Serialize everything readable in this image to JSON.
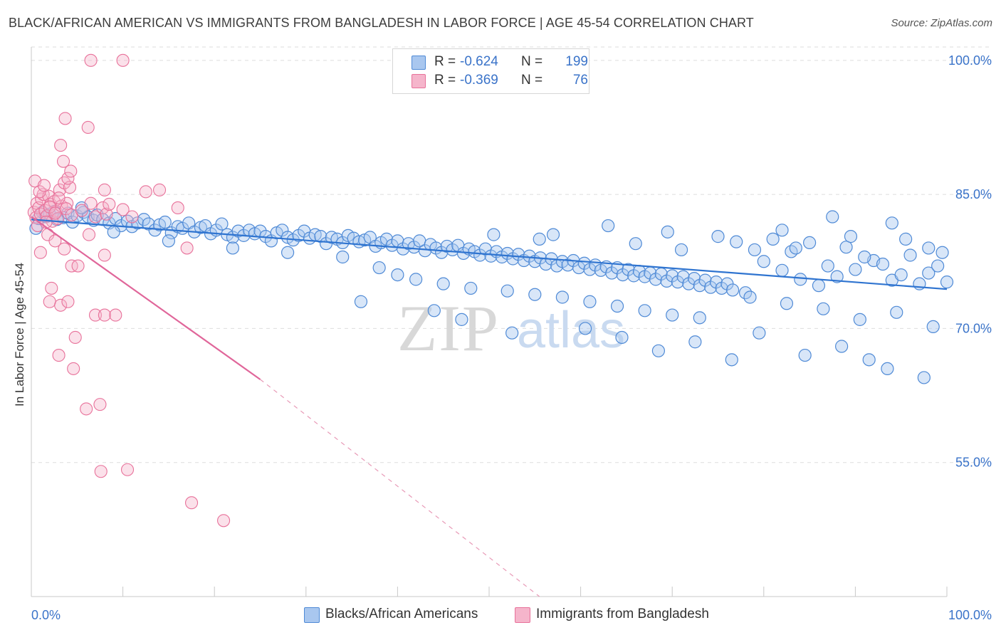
{
  "header": {
    "title": "BLACK/AFRICAN AMERICAN VS IMMIGRANTS FROM BANGLADESH IN LABOR FORCE | AGE 45-54 CORRELATION CHART",
    "source": "Source: ZipAtlas.com"
  },
  "watermark": {
    "zip": "ZIP",
    "atlas": "atlas"
  },
  "legend": {
    "r_label": "R =",
    "n_label": "N =",
    "series": [
      {
        "r": "-0.624",
        "n": "199"
      },
      {
        "r": "-0.369",
        "n": "76"
      }
    ]
  },
  "bottom_legend": [
    "Blacks/African Americans",
    "Immigrants from Bangladesh"
  ],
  "colors": {
    "blue": "#4f8ad6",
    "blue_fill": "#a9c7ef",
    "pink": "#e8719a",
    "pink_fill": "#f5b5cb",
    "tick": "#3a73c9",
    "grid": "#dddddd"
  },
  "chart_data": {
    "type": "scatter",
    "title": "BLACK/AFRICAN AMERICAN VS IMMIGRANTS FROM BANGLADESH IN LABOR FORCE | AGE 45-54 CORRELATION CHART",
    "xlabel": "",
    "ylabel": "In Labor Force | Age 45-54",
    "x_tick_labels": [
      "0.0%",
      "100.0%"
    ],
    "y_tick_labels": [
      "100.0%",
      "85.0%",
      "70.0%",
      "55.0%"
    ],
    "y_ticks": [
      100,
      85,
      70,
      55
    ],
    "xlim": [
      0,
      100
    ],
    "ylim": [
      40,
      101.5
    ],
    "grid": true,
    "legend_position": "top-center",
    "series": [
      {
        "name": "Blacks/African Americans",
        "color": "#4f8ad6",
        "trend": {
          "x": [
            0,
            100
          ],
          "y": [
            82.2,
            74.4
          ]
        },
        "points": [
          [
            0.5,
            81.2
          ],
          [
            0.8,
            82.3
          ],
          [
            1.2,
            83.0
          ],
          [
            1.6,
            82.5
          ],
          [
            2.0,
            82.8
          ],
          [
            2.5,
            83.1
          ],
          [
            2.8,
            82.2
          ],
          [
            3.5,
            82.4
          ],
          [
            4.0,
            82.9
          ],
          [
            4.5,
            81.9
          ],
          [
            5.0,
            82.6
          ],
          [
            5.7,
            83.0
          ],
          [
            6.2,
            82.5
          ],
          [
            6.8,
            82.1
          ],
          [
            7.2,
            82.7
          ],
          [
            7.8,
            82.2
          ],
          [
            8.5,
            81.8
          ],
          [
            9.2,
            82.3
          ],
          [
            9.8,
            81.5
          ],
          [
            10.5,
            82.0
          ],
          [
            11.0,
            81.4
          ],
          [
            11.6,
            81.8
          ],
          [
            12.3,
            82.2
          ],
          [
            12.8,
            81.7
          ],
          [
            13.5,
            81.0
          ],
          [
            14.0,
            81.6
          ],
          [
            14.6,
            81.9
          ],
          [
            15.3,
            80.7
          ],
          [
            16.0,
            81.4
          ],
          [
            16.5,
            81.2
          ],
          [
            17.2,
            81.8
          ],
          [
            17.8,
            80.8
          ],
          [
            18.5,
            81.3
          ],
          [
            19.0,
            81.5
          ],
          [
            19.6,
            80.6
          ],
          [
            20.2,
            81.0
          ],
          [
            20.8,
            81.7
          ],
          [
            21.4,
            80.5
          ],
          [
            22.0,
            80.2
          ],
          [
            22.6,
            80.9
          ],
          [
            23.2,
            80.4
          ],
          [
            23.8,
            81.0
          ],
          [
            24.4,
            80.6
          ],
          [
            25.0,
            80.9
          ],
          [
            25.6,
            80.3
          ],
          [
            26.2,
            79.8
          ],
          [
            26.8,
            80.7
          ],
          [
            27.4,
            81.0
          ],
          [
            28.0,
            80.2
          ],
          [
            28.6,
            79.9
          ],
          [
            29.2,
            80.4
          ],
          [
            29.8,
            80.9
          ],
          [
            30.4,
            80.1
          ],
          [
            31.0,
            80.5
          ],
          [
            31.6,
            80.3
          ],
          [
            32.2,
            79.5
          ],
          [
            32.8,
            80.2
          ],
          [
            33.4,
            80.0
          ],
          [
            34.0,
            79.6
          ],
          [
            34.6,
            80.4
          ],
          [
            35.2,
            80.1
          ],
          [
            35.8,
            79.7
          ],
          [
            36.4,
            79.9
          ],
          [
            37.0,
            80.2
          ],
          [
            37.6,
            79.2
          ],
          [
            38.2,
            79.6
          ],
          [
            38.8,
            80.0
          ],
          [
            39.4,
            79.3
          ],
          [
            40.0,
            79.8
          ],
          [
            40.6,
            78.9
          ],
          [
            41.2,
            79.5
          ],
          [
            41.8,
            79.1
          ],
          [
            42.4,
            79.8
          ],
          [
            43.0,
            78.7
          ],
          [
            43.6,
            79.4
          ],
          [
            44.2,
            79.0
          ],
          [
            44.8,
            78.5
          ],
          [
            45.4,
            79.2
          ],
          [
            46.0,
            78.8
          ],
          [
            46.6,
            79.3
          ],
          [
            47.2,
            78.4
          ],
          [
            47.8,
            78.9
          ],
          [
            48.4,
            78.6
          ],
          [
            49.0,
            78.2
          ],
          [
            49.6,
            78.9
          ],
          [
            50.2,
            78.1
          ],
          [
            50.8,
            78.6
          ],
          [
            51.4,
            78.0
          ],
          [
            52.0,
            78.4
          ],
          [
            52.6,
            77.8
          ],
          [
            53.2,
            78.3
          ],
          [
            53.8,
            77.6
          ],
          [
            54.4,
            78.1
          ],
          [
            55.0,
            77.5
          ],
          [
            55.6,
            77.9
          ],
          [
            56.2,
            77.2
          ],
          [
            56.8,
            77.8
          ],
          [
            57.4,
            77.0
          ],
          [
            58.0,
            77.5
          ],
          [
            58.6,
            77.1
          ],
          [
            59.2,
            77.6
          ],
          [
            59.8,
            76.8
          ],
          [
            60.4,
            77.3
          ],
          [
            61.0,
            76.6
          ],
          [
            61.6,
            77.1
          ],
          [
            62.2,
            76.5
          ],
          [
            62.8,
            76.9
          ],
          [
            63.4,
            76.2
          ],
          [
            64.0,
            76.8
          ],
          [
            64.6,
            76.0
          ],
          [
            65.2,
            76.6
          ],
          [
            65.8,
            75.9
          ],
          [
            66.4,
            76.4
          ],
          [
            67.0,
            75.8
          ],
          [
            67.6,
            76.2
          ],
          [
            68.2,
            75.5
          ],
          [
            68.8,
            76.1
          ],
          [
            69.4,
            75.3
          ],
          [
            70.0,
            75.9
          ],
          [
            70.6,
            75.2
          ],
          [
            71.2,
            75.8
          ],
          [
            71.8,
            75.0
          ],
          [
            72.4,
            75.6
          ],
          [
            73.0,
            74.8
          ],
          [
            73.6,
            75.4
          ],
          [
            74.2,
            74.6
          ],
          [
            74.8,
            75.2
          ],
          [
            75.4,
            74.5
          ],
          [
            76.0,
            75.0
          ],
          [
            76.6,
            74.3
          ],
          [
            5.5,
            83.5
          ],
          [
            9.0,
            80.8
          ],
          [
            15.0,
            79.8
          ],
          [
            22.0,
            79.0
          ],
          [
            28.0,
            78.5
          ],
          [
            34.0,
            78.0
          ],
          [
            38.0,
            76.8
          ],
          [
            40.0,
            76.0
          ],
          [
            42.0,
            75.5
          ],
          [
            45.0,
            75.0
          ],
          [
            48.0,
            74.5
          ],
          [
            52.0,
            74.2
          ],
          [
            55.0,
            73.8
          ],
          [
            58.0,
            73.5
          ],
          [
            61.0,
            73.0
          ],
          [
            64.0,
            72.5
          ],
          [
            67.0,
            72.0
          ],
          [
            70.0,
            71.5
          ],
          [
            73.0,
            71.2
          ],
          [
            78.0,
            74.0
          ],
          [
            80.0,
            77.5
          ],
          [
            82.0,
            76.5
          ],
          [
            84.0,
            75.5
          ],
          [
            86.0,
            74.8
          ],
          [
            88.0,
            75.8
          ],
          [
            90.0,
            76.6
          ],
          [
            92.0,
            77.6
          ],
          [
            94.0,
            75.4
          ],
          [
            96.0,
            78.2
          ],
          [
            98.0,
            76.2
          ],
          [
            79.0,
            78.8
          ],
          [
            81.0,
            80.0
          ],
          [
            83.0,
            78.6
          ],
          [
            85.0,
            79.6
          ],
          [
            87.0,
            77.0
          ],
          [
            89.0,
            79.1
          ],
          [
            91.0,
            78.0
          ],
          [
            93.0,
            77.2
          ],
          [
            95.0,
            76.0
          ],
          [
            97.0,
            75.0
          ],
          [
            99.0,
            77.0
          ],
          [
            100.0,
            75.2
          ],
          [
            78.5,
            73.5
          ],
          [
            82.5,
            72.8
          ],
          [
            86.5,
            72.2
          ],
          [
            90.5,
            71.0
          ],
          [
            94.5,
            71.8
          ],
          [
            98.5,
            70.2
          ],
          [
            88.5,
            68.0
          ],
          [
            93.5,
            65.5
          ],
          [
            97.5,
            64.5
          ],
          [
            79.5,
            69.5
          ],
          [
            84.5,
            67.0
          ],
          [
            91.5,
            66.5
          ],
          [
            60.5,
            70.0
          ],
          [
            52.5,
            69.5
          ],
          [
            36.0,
            73.0
          ],
          [
            44.0,
            72.0
          ],
          [
            47.0,
            71.0
          ],
          [
            64.5,
            69.0
          ],
          [
            68.5,
            67.5
          ],
          [
            72.5,
            68.5
          ],
          [
            76.5,
            66.5
          ],
          [
            63.0,
            81.5
          ],
          [
            57.0,
            80.5
          ],
          [
            69.5,
            80.8
          ],
          [
            75.0,
            80.3
          ],
          [
            82.0,
            81.0
          ],
          [
            87.5,
            82.5
          ],
          [
            94.0,
            81.8
          ],
          [
            98.0,
            79.0
          ],
          [
            66.0,
            79.5
          ],
          [
            55.5,
            80.0
          ],
          [
            50.5,
            80.5
          ],
          [
            71.0,
            78.8
          ],
          [
            77.0,
            79.7
          ],
          [
            83.5,
            79.0
          ],
          [
            89.5,
            80.3
          ],
          [
            95.5,
            80.0
          ],
          [
            99.5,
            78.5
          ]
        ]
      },
      {
        "name": "Immigrants from Bangladesh",
        "color": "#e8719a",
        "trend": {
          "x": [
            0,
            25
          ],
          "y": [
            82.5,
            64.3
          ]
        },
        "trend_dashed": {
          "x": [
            25,
            55.5
          ],
          "y": [
            64.3,
            40
          ]
        },
        "points": [
          [
            0.3,
            83.0
          ],
          [
            0.5,
            82.4
          ],
          [
            0.6,
            84.0
          ],
          [
            0.8,
            83.5
          ],
          [
            1.0,
            82.8
          ],
          [
            1.1,
            84.5
          ],
          [
            1.3,
            85.0
          ],
          [
            1.5,
            83.2
          ],
          [
            1.7,
            82.6
          ],
          [
            1.9,
            84.8
          ],
          [
            2.1,
            83.9
          ],
          [
            2.3,
            82.0
          ],
          [
            2.5,
            84.2
          ],
          [
            2.7,
            83.1
          ],
          [
            2.9,
            82.3
          ],
          [
            3.1,
            85.5
          ],
          [
            3.3,
            83.7
          ],
          [
            3.6,
            86.3
          ],
          [
            3.9,
            84.0
          ],
          [
            4.2,
            85.8
          ],
          [
            0.4,
            86.5
          ],
          [
            0.9,
            85.3
          ],
          [
            1.4,
            86.0
          ],
          [
            2.0,
            83.6
          ],
          [
            2.6,
            82.9
          ],
          [
            3.0,
            84.6
          ],
          [
            3.8,
            83.4
          ],
          [
            4.4,
            82.7
          ],
          [
            0.7,
            81.5
          ],
          [
            1.6,
            81.9
          ],
          [
            5.5,
            83.2
          ],
          [
            6.5,
            84.0
          ],
          [
            7.0,
            82.5
          ],
          [
            7.8,
            83.5
          ],
          [
            8.2,
            82.8
          ],
          [
            8.5,
            83.9
          ],
          [
            10.0,
            83.3
          ],
          [
            12.5,
            85.3
          ],
          [
            14.0,
            85.5
          ],
          [
            16.0,
            83.5
          ],
          [
            3.5,
            88.7
          ],
          [
            4.0,
            86.8
          ],
          [
            4.3,
            87.6
          ],
          [
            3.2,
            90.5
          ],
          [
            3.7,
            93.5
          ],
          [
            6.2,
            92.5
          ],
          [
            6.5,
            100.0
          ],
          [
            10.0,
            100.0
          ],
          [
            11.0,
            82.5
          ],
          [
            8.0,
            85.5
          ],
          [
            1.0,
            78.5
          ],
          [
            1.8,
            80.5
          ],
          [
            2.6,
            79.8
          ],
          [
            3.6,
            78.9
          ],
          [
            4.4,
            77.0
          ],
          [
            5.1,
            77.0
          ],
          [
            6.3,
            80.5
          ],
          [
            8.0,
            78.2
          ],
          [
            17.0,
            79.0
          ],
          [
            2.2,
            74.5
          ],
          [
            2.0,
            73.0
          ],
          [
            3.2,
            72.6
          ],
          [
            4.0,
            73.0
          ],
          [
            7.0,
            71.5
          ],
          [
            8.0,
            71.5
          ],
          [
            9.2,
            71.5
          ],
          [
            4.8,
            69.0
          ],
          [
            3.0,
            67.0
          ],
          [
            4.6,
            65.5
          ],
          [
            6.0,
            61.0
          ],
          [
            7.5,
            61.5
          ],
          [
            7.6,
            54.0
          ],
          [
            10.5,
            54.2
          ],
          [
            17.5,
            50.5
          ],
          [
            21.0,
            48.5
          ]
        ]
      }
    ]
  },
  "y_axis_label": "In Labor Force | Age 45-54"
}
